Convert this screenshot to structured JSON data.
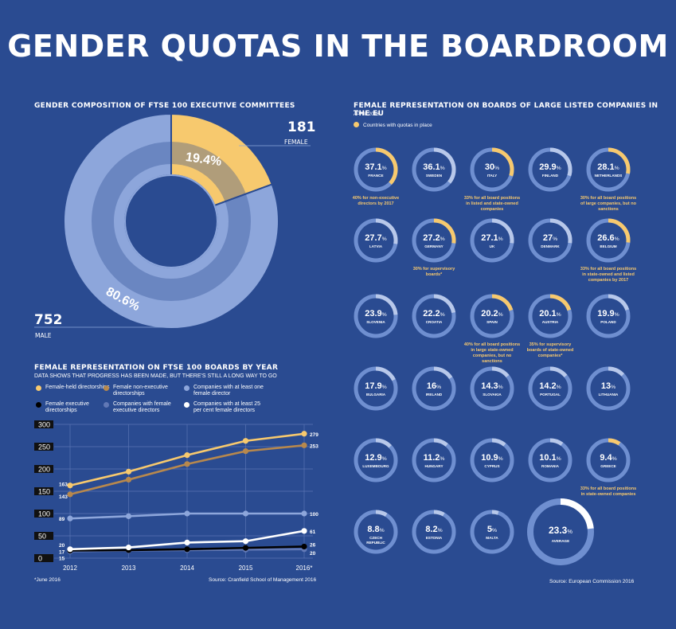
{
  "title": "GENDER QUOTAS IN THE BOARDROOM",
  "colors": {
    "background": "#2a4b91",
    "gold": "#f7c96e",
    "dark_gold": "#b7884d",
    "light_blue": "#8da6db",
    "mid_blue": "#6178b5",
    "white": "#ffffff",
    "black": "#000000",
    "track": "#6f8fd0"
  },
  "donut": {
    "heading": "GENDER COMPOSITION OF FTSE 100 EXECUTIVE COMMITTEES",
    "female_count": "181",
    "female_label": "FEMALE",
    "male_count": "752",
    "male_label": "MALE",
    "female_pct_label": "19.4%",
    "male_pct_label": "80.6%"
  },
  "line_chart": {
    "heading": "FEMALE REPRESENTATION ON FTSE 100 BOARDS BY YEAR",
    "subheading": "DATA SHOWS THAT PROGRESS HAS BEEN MADE, BUT THERE'S STILL A LONG WAY TO GO",
    "legend": [
      {
        "label": "Female-held directorships",
        "color": "#f7c96e"
      },
      {
        "label": "Female non-executive directorships",
        "color": "#b7884d"
      },
      {
        "label": "Companies with at least one female director",
        "color": "#8da6db"
      },
      {
        "label": "Female executive directorships",
        "color": "#000000"
      },
      {
        "label": "Companies with female executive directors",
        "color": "#6178b5"
      },
      {
        "label": "Companies with at least 25 per cent female directors",
        "color": "#ffffff"
      }
    ],
    "footnote": "*June 2016",
    "source": "Source: Cranfield School of Management 2016"
  },
  "chart_data": [
    {
      "type": "pie",
      "title": "GENDER COMPOSITION OF FTSE 100 EXECUTIVE COMMITTEES",
      "categories": [
        "FEMALE",
        "MALE"
      ],
      "values": [
        181,
        752
      ],
      "percent_labels": [
        "19.4%",
        "80.6%"
      ],
      "colors": [
        "#f7c96e",
        "#8da6db"
      ]
    },
    {
      "type": "line",
      "title": "FEMALE REPRESENTATION ON FTSE 100 BOARDS BY YEAR",
      "subtitle": "DATA SHOWS THAT PROGRESS HAS BEEN MADE, BUT THERE'S STILL A LONG WAY TO GO",
      "x": [
        "2012",
        "2013",
        "2014",
        "2015",
        "2016*"
      ],
      "yticks": [
        "300",
        "250",
        "200",
        "150",
        "100",
        "50",
        "0"
      ],
      "ylim": [
        0,
        300
      ],
      "grid": true,
      "series": [
        {
          "name": "Female-held directorships",
          "color": "#f7c96e",
          "values": [
            163,
            194,
            231,
            263,
            279
          ],
          "start_label": "163",
          "end_label": "279"
        },
        {
          "name": "Female non-executive directorships",
          "color": "#b7884d",
          "values": [
            143,
            176,
            211,
            240,
            253
          ],
          "start_label": "143",
          "end_label": "253"
        },
        {
          "name": "Companies with at least one female director",
          "color": "#8da6db",
          "values": [
            89,
            94,
            100,
            100,
            100
          ],
          "start_label": "89",
          "end_label": "100"
        },
        {
          "name": "Female executive directorships",
          "color": "#000000",
          "values": [
            17,
            18,
            20,
            23,
            26
          ],
          "start_label": "17",
          "end_label": "26"
        },
        {
          "name": "Companies with female executive directors",
          "color": "#6178b5",
          "values": [
            15,
            17,
            18,
            19,
            20
          ],
          "start_label": "15",
          "end_label": "20"
        },
        {
          "name": "Companies with at least 25 per cent female directors",
          "color": "#ffffff",
          "values": [
            20,
            24,
            35,
            38,
            61
          ],
          "start_label": "20",
          "end_label": "61"
        }
      ]
    },
    {
      "type": "pie",
      "title": "FEMALE REPRESENTATION ON BOARDS OF LARGE LISTED COMPANIES IN THE EU",
      "subtitle": "APRIL 2016",
      "legend": "Countries with quotas in place",
      "countries": [
        {
          "name": "FRANCE",
          "value": 37.1,
          "label": "37.1",
          "quota": true,
          "note": "40% for non-executive directors by 2017"
        },
        {
          "name": "SWEDEN",
          "value": 36.1,
          "label": "36.1",
          "quota": false
        },
        {
          "name": "ITALY",
          "value": 30,
          "label": "30",
          "quota": true,
          "note": "33% for all board positions in listed and state-owned companies"
        },
        {
          "name": "FINLAND",
          "value": 29.9,
          "label": "29.9",
          "quota": false
        },
        {
          "name": "NETHERLANDS",
          "value": 28.1,
          "label": "28.1",
          "quota": true,
          "note": "30% for all board positions of large companies, but no sanctions"
        },
        {
          "name": "LATVIA",
          "value": 27.7,
          "label": "27.7",
          "quota": false
        },
        {
          "name": "GERMANY",
          "value": 27.2,
          "label": "27.2",
          "quota": true,
          "note": "30% for supervisory boards*"
        },
        {
          "name": "UK",
          "value": 27.1,
          "label": "27.1",
          "quota": false
        },
        {
          "name": "DENMARK",
          "value": 27,
          "label": "27",
          "quota": false
        },
        {
          "name": "BELGIUM",
          "value": 26.6,
          "label": "26.6",
          "quota": true,
          "note": "33% for all board positions in state-owned and listed companies by 2017"
        },
        {
          "name": "SLOVENIA",
          "value": 23.9,
          "label": "23.9",
          "quota": false
        },
        {
          "name": "CROATIA",
          "value": 22.2,
          "label": "22.2",
          "quota": false
        },
        {
          "name": "SPAIN",
          "value": 20.2,
          "label": "20.2",
          "quota": true,
          "note": "40% for all board positions in large state-owned companies, but no sanctions"
        },
        {
          "name": "AUSTRIA",
          "value": 20.1,
          "label": "20.1",
          "quota": true,
          "note": "35% for supervisory boards of state-owned companies*"
        },
        {
          "name": "POLAND",
          "value": 19.9,
          "label": "19.9",
          "quota": false
        },
        {
          "name": "BULGARIA",
          "value": 17.9,
          "label": "17.9",
          "quota": false
        },
        {
          "name": "IRELAND",
          "value": 16,
          "label": "16",
          "quota": false
        },
        {
          "name": "SLOVAKIA",
          "value": 14.3,
          "label": "14.3",
          "quota": false
        },
        {
          "name": "PORTUGAL",
          "value": 14.2,
          "label": "14.2",
          "quota": false
        },
        {
          "name": "LITHUANIA",
          "value": 13,
          "label": "13",
          "quota": false
        },
        {
          "name": "LUXEMBOURG",
          "value": 12.9,
          "label": "12.9",
          "quota": false
        },
        {
          "name": "HUNGARY",
          "value": 11.2,
          "label": "11.2",
          "quota": false
        },
        {
          "name": "CYPRUS",
          "value": 10.9,
          "label": "10.9",
          "quota": false
        },
        {
          "name": "ROMANIA",
          "value": 10.1,
          "label": "10.1",
          "quota": false
        },
        {
          "name": "GREECE",
          "value": 9.4,
          "label": "9.4",
          "quota": true,
          "note": "33% for all board positions in state-owned companies"
        },
        {
          "name": "CZECH REPUBLIC",
          "value": 8.8,
          "label": "8.8",
          "quota": false
        },
        {
          "name": "ESTONIA",
          "value": 8.2,
          "label": "8.2",
          "quota": false
        },
        {
          "name": "MALTA",
          "value": 5,
          "label": "5",
          "quota": false
        },
        {
          "name": "AVERAGE",
          "value": 23.3,
          "label": "23.3",
          "quota": false
        }
      ]
    }
  ],
  "eu": {
    "heading": "FEMALE REPRESENTATION ON BOARDS OF LARGE LISTED COMPANIES IN THE EU",
    "date": "APRIL 2016",
    "legend_label": "Countries with quotas in place",
    "percent_sign": "%",
    "source": "Source: European Commission 2016"
  }
}
